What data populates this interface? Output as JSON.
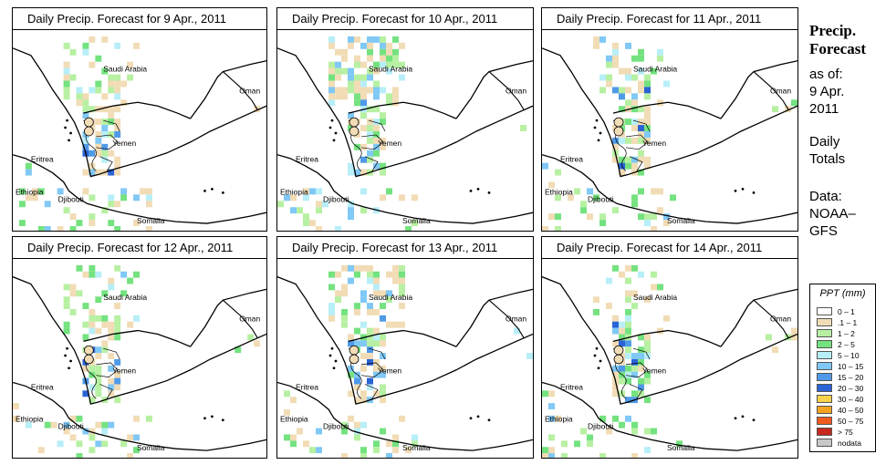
{
  "panels": [
    {
      "title": "Daily Precip. Forecast for  9 Apr., 2011"
    },
    {
      "title": "Daily Precip. Forecast for  10 Apr., 2011"
    },
    {
      "title": "Daily Precip. Forecast for  11 Apr., 2011"
    },
    {
      "title": "Daily Precip. Forecast for  12 Apr., 2011"
    },
    {
      "title": "Daily Precip. Forecast for  13 Apr., 2011"
    },
    {
      "title": "Daily Precip. Forecast for  14 Apr., 2011"
    }
  ],
  "map_labels": [
    "Saudi Arabia",
    "Oman",
    "Yemen",
    "Eritrea",
    "Ethiopia",
    "Djibouti",
    "Somalia"
  ],
  "side": {
    "title_line1": "Precip.",
    "title_line2": "Forecast",
    "asof_line1": "as of:",
    "asof_line2": "9 Apr.",
    "asof_line3": "2011",
    "totals_line1": "Daily",
    "totals_line2": "Totals",
    "data_line1": "Data:",
    "data_line2": "NOAA–",
    "data_line3": "GFS"
  },
  "legend": {
    "title": "PPT (mm)",
    "items": [
      {
        "label": "0 – 1",
        "color": "#ffffff"
      },
      {
        "label": ".1 – 1",
        "color": "#f1dcb6"
      },
      {
        "label": "1 – 2",
        "color": "#b7f0a2"
      },
      {
        "label": "2 – 5",
        "color": "#74e27f"
      },
      {
        "label": "5 – 10",
        "color": "#b7eef8"
      },
      {
        "label": "10 – 15",
        "color": "#80c8f5"
      },
      {
        "label": "15 – 20",
        "color": "#4f9ae8"
      },
      {
        "label": "20 – 30",
        "color": "#2a63d6"
      },
      {
        "label": "30 – 40",
        "color": "#f7d24a"
      },
      {
        "label": "40 – 50",
        "color": "#f5a31f"
      },
      {
        "label": "50 – 75",
        "color": "#f05a1e"
      },
      {
        "label": "> 75",
        "color": "#c8281e"
      },
      {
        "label": "nodata",
        "color": "#c8c8c8"
      }
    ]
  }
}
